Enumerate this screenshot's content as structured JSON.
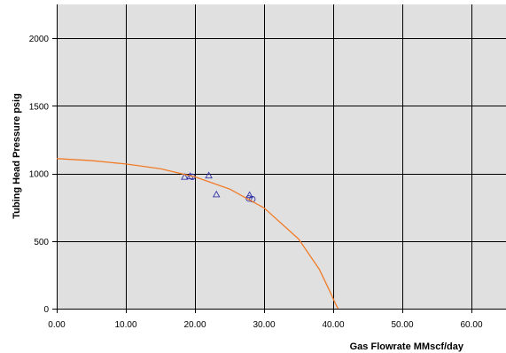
{
  "chart_data": {
    "type": "scatter",
    "title": "",
    "xlabel": "Gas Flowrate MMscf/day",
    "ylabel": "Tubing Head Pressure psig",
    "xlim": [
      0,
      65
    ],
    "ylim": [
      0,
      2250
    ],
    "x_ticks": [
      "0.00",
      "10.00",
      "20.00",
      "30.00",
      "40.00",
      "50.00",
      "60.00"
    ],
    "y_ticks": [
      "0",
      "500",
      "1000",
      "1500",
      "2000"
    ],
    "grid": true,
    "plot_background": "#e0e0e0",
    "grid_color": "#000000",
    "series": [
      {
        "marker": "triangle",
        "color": "#3333aa",
        "x": [
          18.5,
          19.3,
          22.0,
          23.1,
          27.9
        ],
        "y": [
          975,
          980,
          985,
          845,
          840
        ]
      },
      {
        "marker": "circle",
        "color": "#3333aa",
        "x": [
          19.6,
          27.8,
          28.3
        ],
        "y": [
          975,
          815,
          810
        ]
      },
      {
        "line": "curve",
        "color": "#f07c28",
        "x": [
          0,
          5,
          10,
          15,
          20,
          25,
          30,
          35,
          38,
          39.5,
          40.3,
          40.7
        ],
        "y": [
          1110,
          1095,
          1070,
          1035,
          975,
          885,
          745,
          515,
          290,
          130,
          40,
          0
        ]
      }
    ]
  }
}
